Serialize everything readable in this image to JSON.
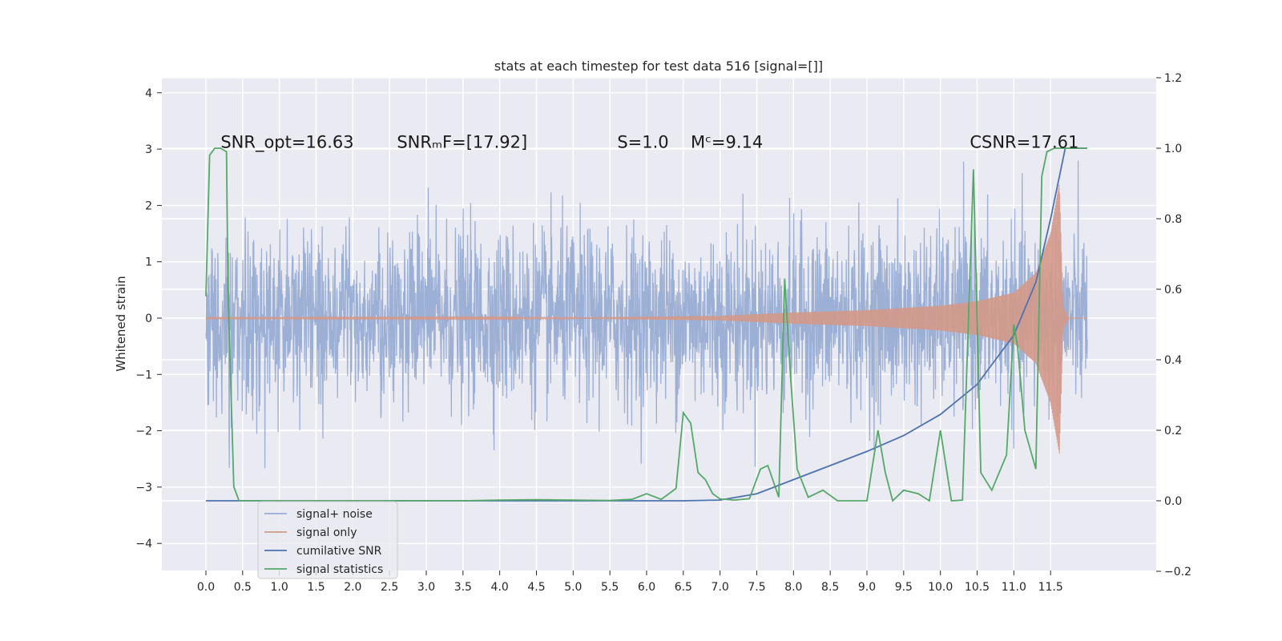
{
  "chart_data": {
    "type": "line",
    "title": "stats at each timestep for test data 516 [signal=[]]",
    "ylabel": "Whitened strain",
    "xlim": [
      -0.5,
      12.5
    ],
    "ylim": [
      -4.4,
      4.3
    ],
    "y2lim": [
      -0.2,
      1.2
    ],
    "x_ticks": [
      "0.0",
      "0.5",
      "1.0",
      "1.5",
      "2.0",
      "2.5",
      "3.0",
      "3.5",
      "4.0",
      "4.5",
      "5.0",
      "5.5",
      "6.0",
      "6.5",
      "7.0",
      "7.5",
      "8.0",
      "8.5",
      "9.0",
      "9.5",
      "10.0",
      "10.5",
      "11.0",
      "11.5"
    ],
    "y_ticks": [
      "4",
      "3",
      "2",
      "1",
      "0",
      "−1",
      "−2",
      "−3",
      "−4"
    ],
    "y2_ticks": [
      "1.2",
      "1.0",
      "0.8",
      "0.6",
      "0.4",
      "0.2",
      "0.0",
      "−0.2"
    ],
    "grid": true,
    "legend_position": "lower-left",
    "annotations": [
      {
        "text": "SNR_opt=16.63",
        "x": 0.2,
        "y": 3.15
      },
      {
        "text": "SNRₘF=[17.92]",
        "x": 2.6,
        "y": 3.15
      },
      {
        "text": "S=1.0",
        "x": 5.6,
        "y": 3.15
      },
      {
        "text": "Mᶜ=9.14",
        "x": 6.6,
        "y": 3.15
      },
      {
        "text": "CSNR=17.61",
        "x": 10.4,
        "y": 3.15
      }
    ],
    "series": [
      {
        "name": "signal+ noise",
        "color": "#98acd3",
        "axis": "left",
        "description_kind": "noise",
        "x_range": [
          0.0,
          12.0
        ],
        "sigma": 0.78
      },
      {
        "name": "signal only",
        "color": "#d4998a",
        "axis": "left",
        "envelope": [
          [
            0.0,
            0.005
          ],
          [
            5.0,
            0.01
          ],
          [
            7.0,
            0.04
          ],
          [
            8.0,
            0.1
          ],
          [
            9.0,
            0.14
          ],
          [
            10.0,
            0.22
          ],
          [
            10.5,
            0.3
          ],
          [
            11.0,
            0.45
          ],
          [
            11.3,
            0.8
          ],
          [
            11.5,
            1.5
          ],
          [
            11.62,
            2.4
          ],
          [
            11.67,
            0.2
          ],
          [
            11.75,
            0.0
          ]
        ]
      },
      {
        "name": "cumilative SNR",
        "color": "#4c72b0",
        "axis": "right",
        "x": [
          0.0,
          6.5,
          7.0,
          7.5,
          8.0,
          8.5,
          9.0,
          9.5,
          10.0,
          10.5,
          11.0,
          11.3,
          11.5,
          11.7,
          12.0
        ],
        "y": [
          0.0,
          0.0,
          0.002,
          0.02,
          0.06,
          0.1,
          0.14,
          0.185,
          0.245,
          0.33,
          0.47,
          0.62,
          0.8,
          1.0,
          1.0
        ]
      },
      {
        "name": "signal statistics",
        "color": "#55a868",
        "axis": "right",
        "x": [
          0.0,
          0.05,
          0.12,
          0.2,
          0.28,
          0.3,
          0.38,
          0.45,
          0.5,
          1.0,
          2.0,
          3.0,
          3.5,
          4.0,
          4.5,
          5.0,
          5.5,
          5.8,
          6.0,
          6.2,
          6.4,
          6.5,
          6.6,
          6.7,
          6.8,
          6.9,
          7.0,
          7.2,
          7.4,
          7.55,
          7.65,
          7.8,
          7.88,
          7.96,
          8.05,
          8.2,
          8.4,
          8.6,
          9.0,
          9.15,
          9.25,
          9.35,
          9.5,
          9.7,
          9.85,
          10.0,
          10.15,
          10.3,
          10.45,
          10.55,
          10.7,
          10.9,
          11.0,
          11.05,
          11.15,
          11.3,
          11.38,
          11.45,
          11.55,
          11.6,
          11.75,
          12.0
        ],
        "y": [
          0.58,
          0.98,
          1.0,
          1.0,
          0.99,
          0.6,
          0.04,
          0.0,
          0.0,
          0.0,
          0.0,
          0.0,
          0.0,
          0.002,
          0.003,
          0.002,
          0.001,
          0.004,
          0.02,
          0.004,
          0.035,
          0.25,
          0.22,
          0.08,
          0.06,
          0.02,
          0.005,
          0.002,
          0.006,
          0.09,
          0.1,
          0.01,
          0.63,
          0.35,
          0.09,
          0.01,
          0.03,
          0.0,
          0.0,
          0.2,
          0.08,
          0.0,
          0.03,
          0.02,
          0.0,
          0.2,
          0.0,
          0.002,
          0.94,
          0.08,
          0.03,
          0.13,
          0.5,
          0.44,
          0.2,
          0.09,
          0.92,
          0.99,
          1.0,
          1.0,
          1.0,
          1.0
        ]
      }
    ]
  }
}
